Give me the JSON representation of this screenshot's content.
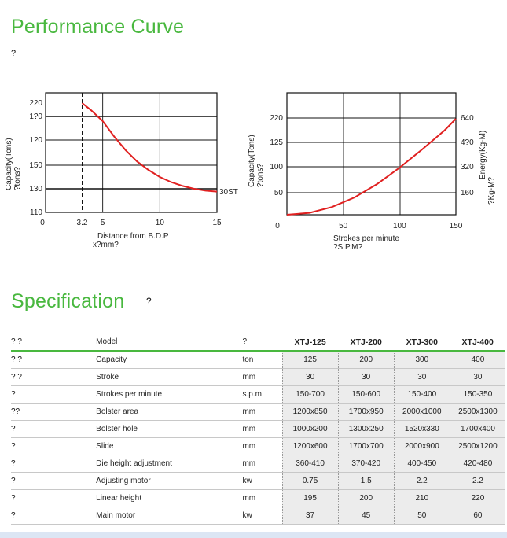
{
  "page": {
    "title": "Performance Curve",
    "title_note": "?",
    "spec_title": "Specification",
    "spec_title_note": "?"
  },
  "chart_data": [
    {
      "type": "line",
      "ylabel": "Capacity(Tons)",
      "ylabel2": "?tons?",
      "xlabel": "Distance from B.D.P",
      "xlabel2": "x?mm?",
      "x_ticks": [
        "0",
        "3.2",
        "5",
        "10",
        "15"
      ],
      "x_tick_values": [
        0,
        3.2,
        5,
        10,
        15
      ],
      "y_ticks": [
        "220",
        "1?0",
        "1?0",
        "150",
        "130",
        "110"
      ],
      "y_tick_levels": [
        0,
        1,
        2,
        3,
        4,
        5
      ],
      "xlim": [
        0,
        15
      ],
      "dashed_x": 3.2,
      "series": [
        {
          "name": "30ST",
          "color": "#e02020",
          "x": [
            3.2,
            4,
            5,
            6,
            7,
            8,
            9,
            10,
            11,
            12,
            13,
            14,
            15
          ],
          "y_level": [
            0.0,
            0.55,
            1.2,
            1.85,
            2.4,
            2.85,
            3.2,
            3.5,
            3.72,
            3.88,
            4.0,
            4.08,
            4.12
          ]
        }
      ],
      "grid": true
    },
    {
      "type": "line",
      "ylabel": "Capacity(Tons)",
      "ylabel2": "?tons?",
      "ylabel_right": "Energy(Kg-M)",
      "ylabel_right2": "?Kg-M?",
      "xlabel": "Strokes per minute",
      "xlabel2": "?S.P.M?",
      "x_ticks": [
        "0",
        "50",
        "100",
        "150"
      ],
      "x_tick_values": [
        0,
        50,
        100,
        150
      ],
      "y_ticks": [
        "220",
        "125",
        "100",
        "50"
      ],
      "y_ticks_right": [
        "640",
        "4?0",
        "320",
        "160"
      ],
      "xlim": [
        0,
        150
      ],
      "series": [
        {
          "name": "",
          "color": "#e02020",
          "x": [
            0,
            20,
            40,
            60,
            80,
            100,
            120,
            140,
            150
          ],
          "y_frac": [
            0.0,
            0.02,
            0.08,
            0.18,
            0.32,
            0.49,
            0.68,
            0.88,
            1.0
          ]
        }
      ],
      "grid": true
    }
  ],
  "spec": {
    "header": {
      "c1": "? ?",
      "c2": "Model",
      "c3": "?"
    },
    "models": [
      "XTJ-125",
      "XTJ-200",
      "XTJ-300",
      "XTJ-400"
    ],
    "rows": [
      {
        "c1": "? ?",
        "label": "Capacity",
        "unit": "ton",
        "values": [
          "125",
          "200",
          "300",
          "400"
        ]
      },
      {
        "c1": "? ?",
        "label": "Stroke",
        "unit": "mm",
        "values": [
          "30",
          "30",
          "30",
          "30"
        ]
      },
      {
        "c1": "?",
        "label": "Strokes per minute",
        "unit": "s.p.m",
        "values": [
          "150-700",
          "150-600",
          "150-400",
          "150-350"
        ]
      },
      {
        "c1": "??",
        "label": "Bolster area",
        "unit": "mm",
        "values": [
          "1200x850",
          "1700x950",
          "2000x1000",
          "2500x1300"
        ]
      },
      {
        "c1": "?",
        "label": "Bolster hole",
        "unit": "mm",
        "values": [
          "1000x200",
          "1300x250",
          "1520x330",
          "1700x400"
        ]
      },
      {
        "c1": "?",
        "label": "Slide",
        "unit": "mm",
        "values": [
          "1200x600",
          "1700x700",
          "2000x900",
          "2500x1200"
        ]
      },
      {
        "c1": "?",
        "label": "Die height adjustment",
        "unit": "mm",
        "values": [
          "360-410",
          "370-420",
          "400-450",
          "420-480"
        ]
      },
      {
        "c1": "?",
        "label": "Adjusting motor",
        "unit": "kw",
        "values": [
          "0.75",
          "1.5",
          "2.2",
          "2.2"
        ]
      },
      {
        "c1": "?",
        "label": "Linear height",
        "unit": "mm",
        "values": [
          "195",
          "200",
          "210",
          "220"
        ]
      },
      {
        "c1": "?",
        "label": "Main motor",
        "unit": "kw",
        "values": [
          "37",
          "45",
          "50",
          "60"
        ]
      }
    ]
  }
}
